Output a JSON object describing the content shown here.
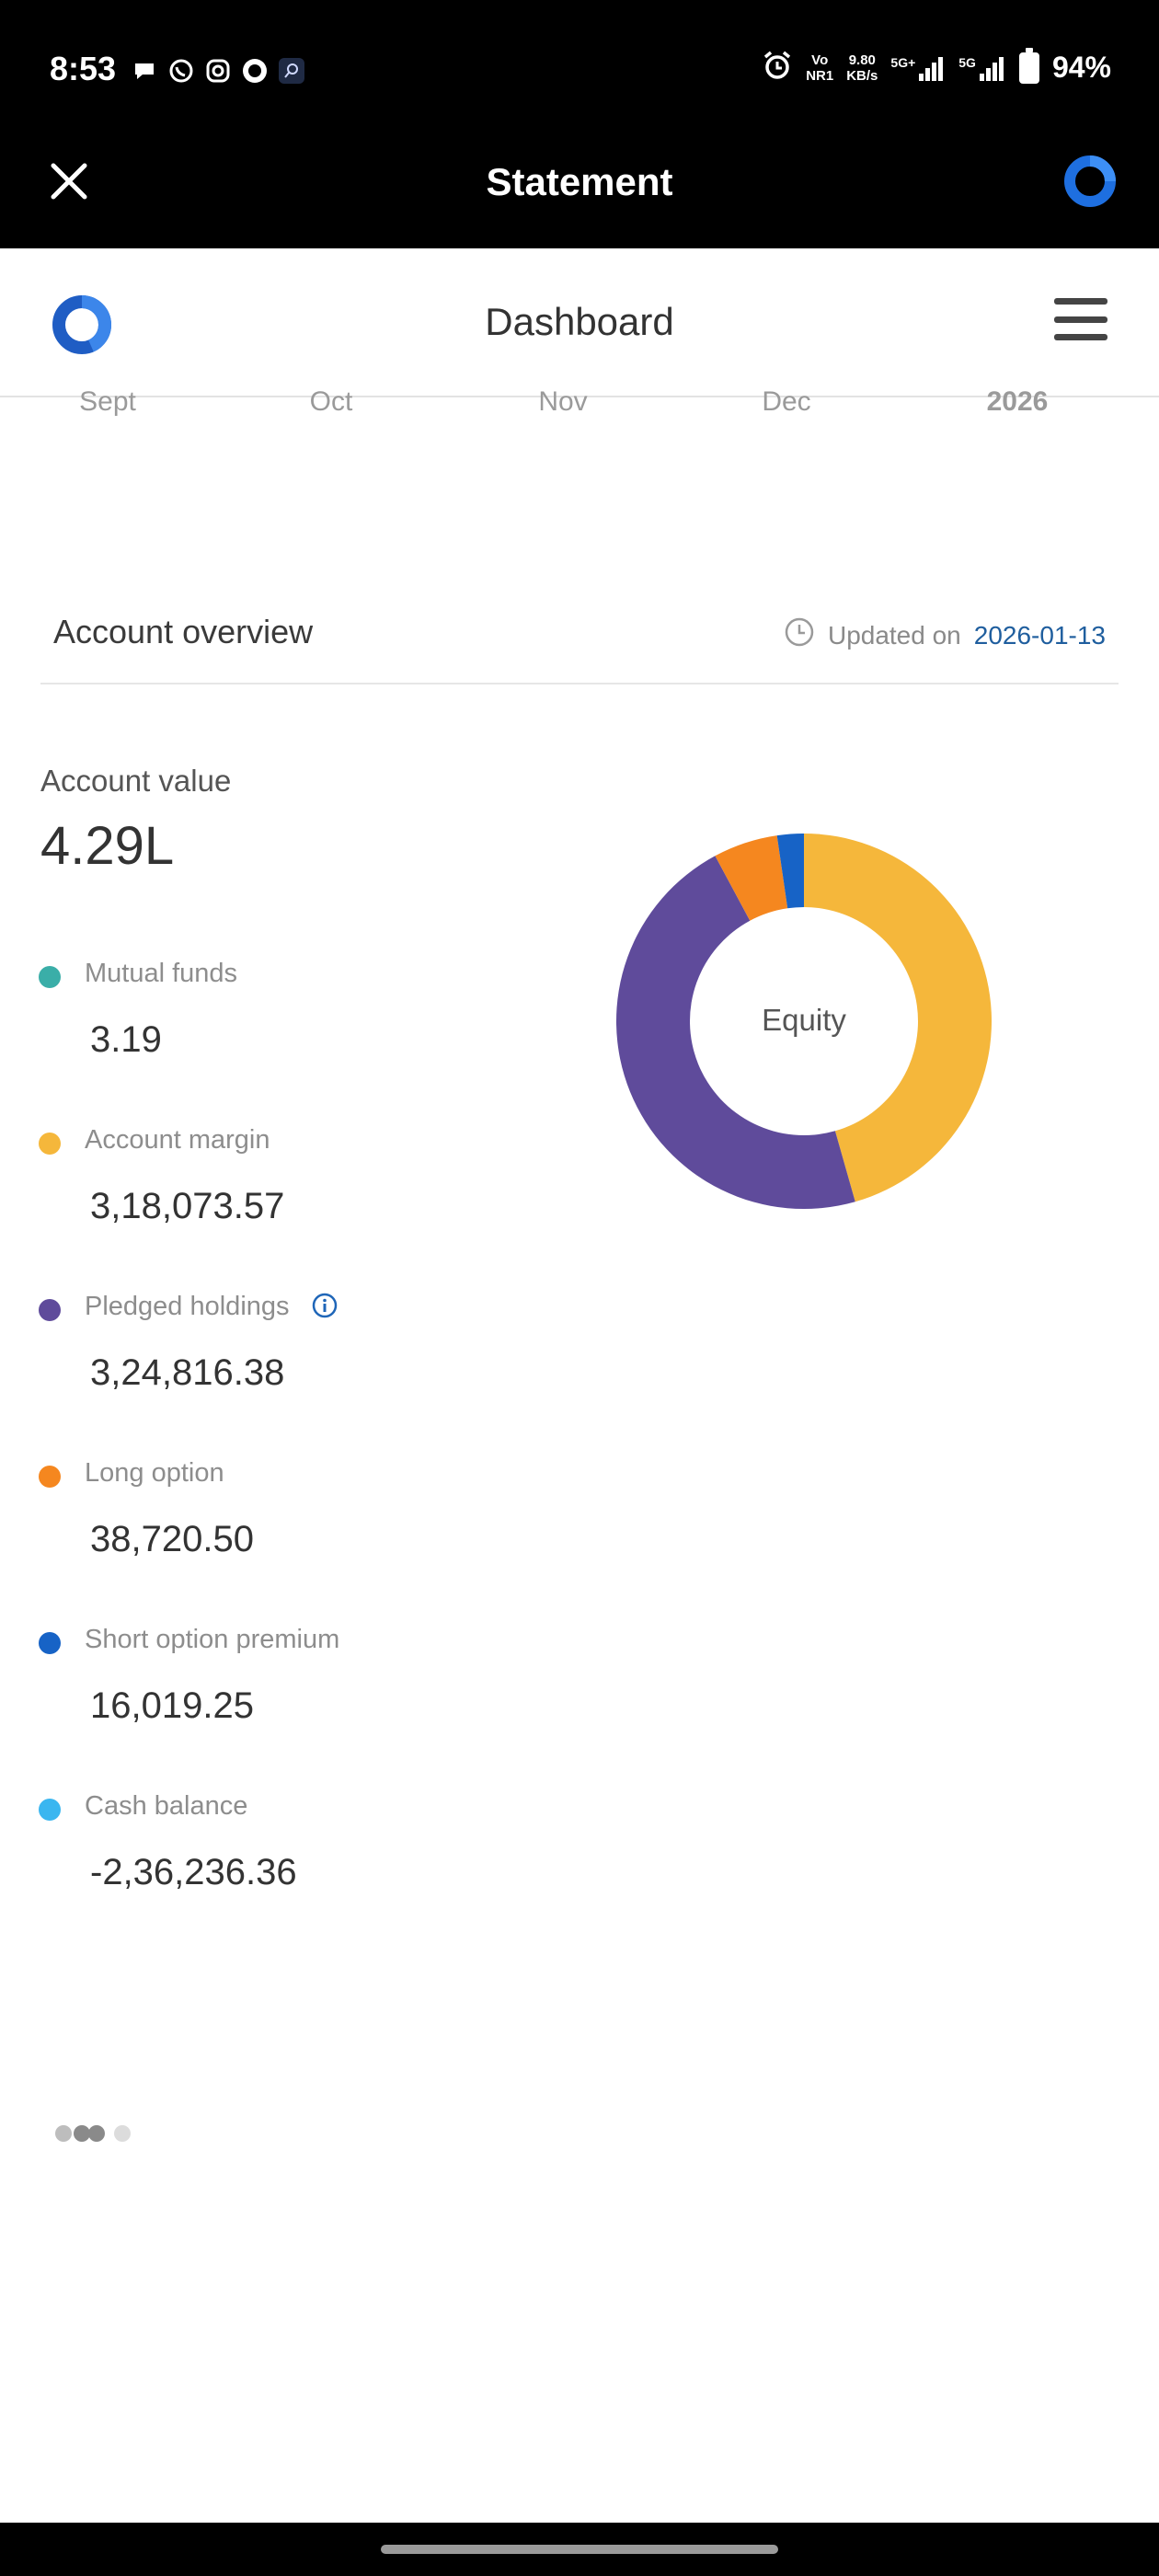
{
  "status_bar": {
    "time": "8:53",
    "net_line1": "Vo",
    "net_line2": "NR1",
    "speed_line1": "9.80",
    "speed_line2": "KB/s",
    "sim1": "5G+",
    "sim2": "5G",
    "battery": "94%"
  },
  "header": {
    "title": "Statement"
  },
  "dashboard": {
    "title": "Dashboard"
  },
  "months": [
    "Sept",
    "Oct",
    "Nov",
    "Dec",
    "2026"
  ],
  "overview": {
    "title": "Account overview",
    "updated_prefix": "Updated on",
    "updated_date": "2026-01-13"
  },
  "account": {
    "label": "Account value",
    "value": "4.29L"
  },
  "items": [
    {
      "label": "Mutual funds",
      "value": "3.19",
      "color": "#3aaea8"
    },
    {
      "label": "Account margin",
      "value": "3,18,073.57",
      "color": "#f5b73b"
    },
    {
      "label": "Pledged holdings",
      "value": "3,24,816.38",
      "color": "#5f4b9b"
    },
    {
      "label": "Long option",
      "value": "38,720.50",
      "color": "#f5871f"
    },
    {
      "label": "Short option premium",
      "value": "16,019.25",
      "color": "#1763c6"
    },
    {
      "label": "Cash balance",
      "value": "-2,36,236.36",
      "color": "#3ab6f0"
    }
  ],
  "chart_data": {
    "type": "pie",
    "title": "Equity",
    "slices": [
      {
        "name": "Account margin",
        "value": 318073.57,
        "color": "#f5b73b"
      },
      {
        "name": "Pledged holdings",
        "value": 324816.38,
        "color": "#5f4b9b"
      },
      {
        "name": "Long option",
        "value": 38720.5,
        "color": "#f5871f"
      },
      {
        "name": "Short option premium",
        "value": 16019.25,
        "color": "#1763c6"
      }
    ]
  }
}
